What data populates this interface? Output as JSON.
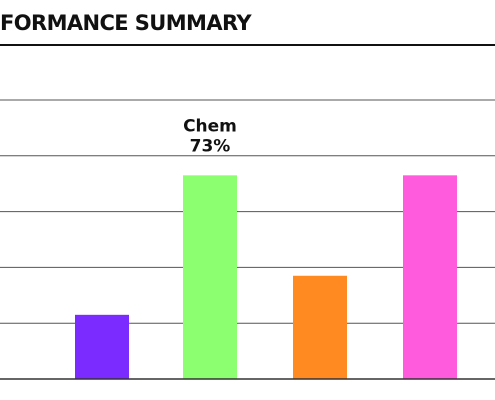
{
  "chart_data": {
    "type": "bar",
    "title": "FORMANCE SUMMARY",
    "xlabel": "",
    "ylabel": "",
    "ylim": [
      0,
      100
    ],
    "grid": true,
    "categories": [
      "",
      "Chem",
      "",
      ""
    ],
    "values": [
      23,
      73,
      37,
      73
    ],
    "colors": [
      "#7B2BFF",
      "#8CFF70",
      "#FF8A22",
      "#FF5BDC"
    ],
    "annotations": [
      {
        "category": "Chem",
        "name": "Chem",
        "value_label": "73%"
      }
    ]
  }
}
